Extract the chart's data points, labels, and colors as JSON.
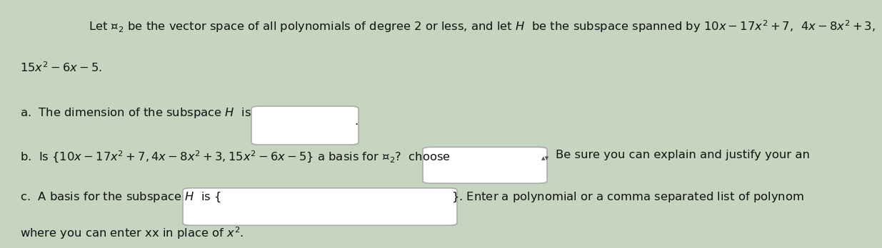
{
  "bg_color": "#c5d5c0",
  "text_color": "#111111",
  "fig_width": 12.0,
  "fig_height": 3.28,
  "line1": "Let $\\mathcal{P}_2$ be the vector space of all polynomials of degree 2 or less, and let $H$  be the subspace spanned by $10x - 17x^2 + 7$,  $4x - 8x^2 + 3$,",
  "line2": "$15x^2 - 6x - 5$.",
  "part_a_label": "a.  The dimension of the subspace $H$  is",
  "part_b_label": "b.  Is $\\{10x - 17x^2 + 7, 4x - 8x^2 + 3, 15x^2 - 6x - 5\\}$ a basis for $\\mathcal{P}_2$?  choose",
  "part_b_arrow": "▴▾",
  "part_b_extra": "Be sure you can explain and justify your an",
  "part_c_label": "c.  A basis for the subspace $H$  is $\\{$",
  "part_c_close": "$\\}$. Enter a polynomial or a comma separated list of polynom",
  "part_c_sub": "where you can enter xx in place of $x^2$.",
  "font_size_main": 11.8,
  "font_size_arrow": 8
}
